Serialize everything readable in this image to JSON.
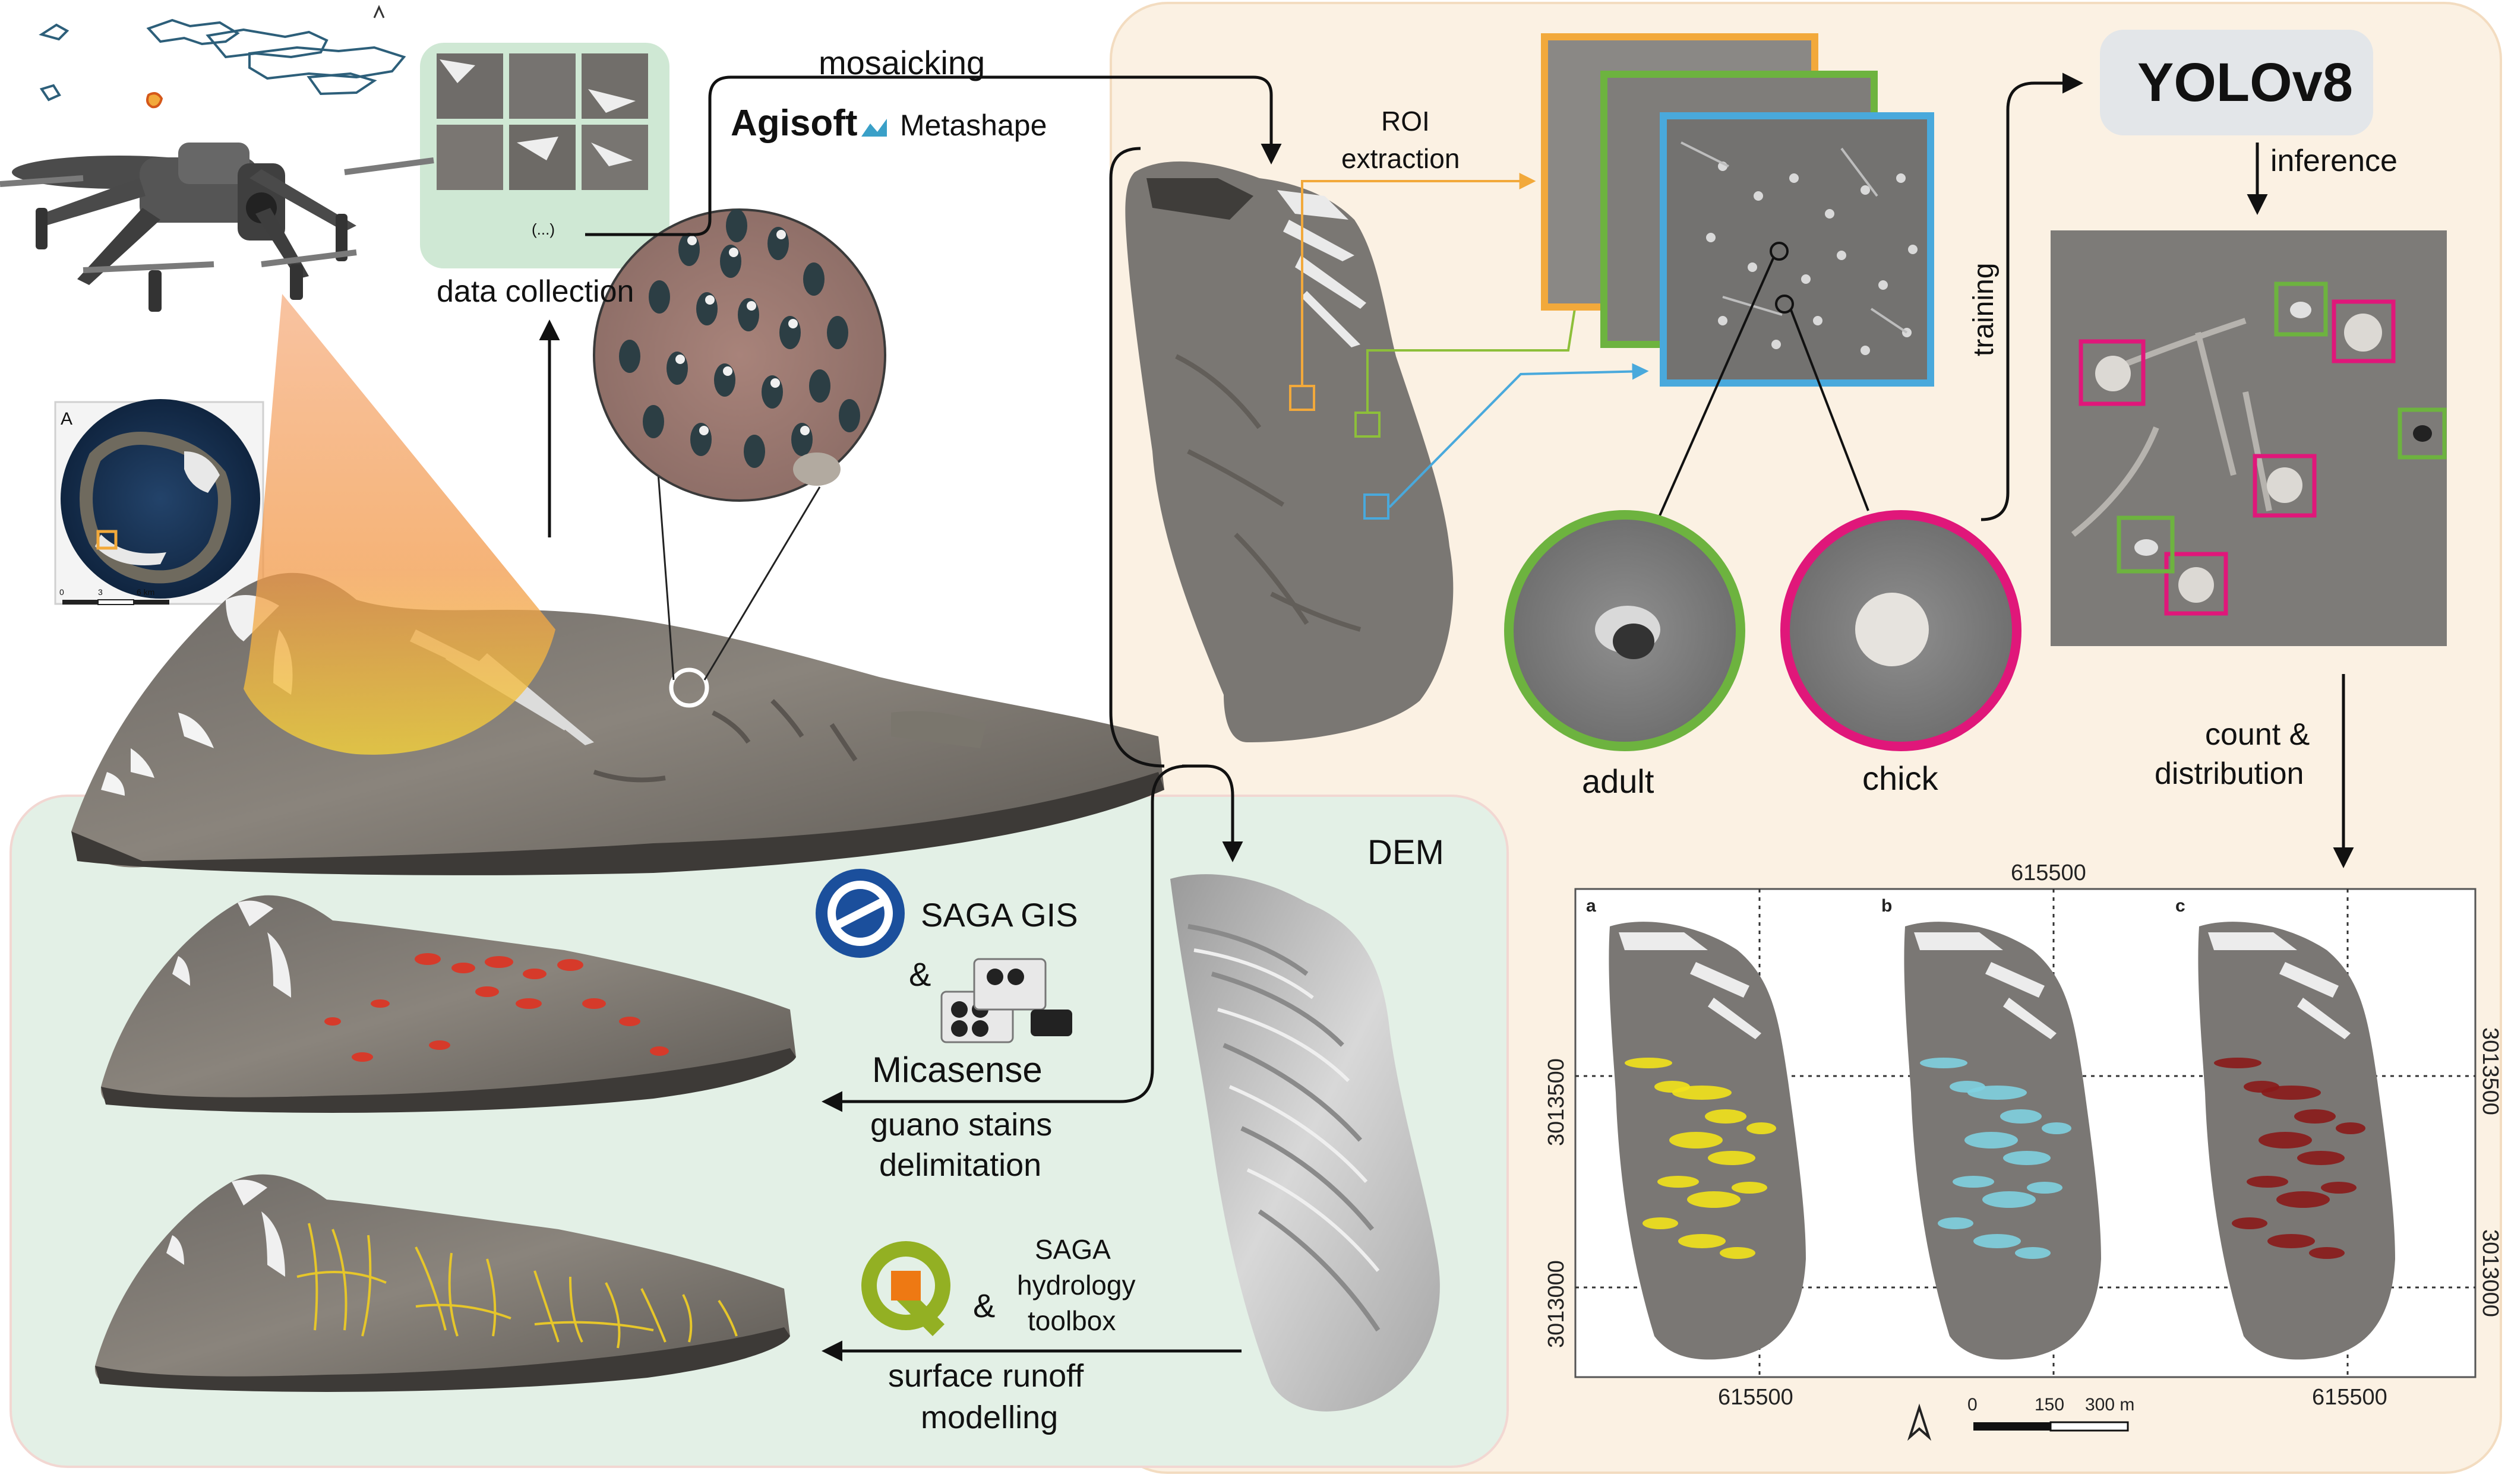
{
  "workflow": {
    "mosaicking": "mosaicking",
    "software_agisoft": "Agisoft",
    "software_metashape": "Metashape",
    "ellipsis": "(...)",
    "data_collection": "data collection",
    "roi_extraction_1": "ROI",
    "roi_extraction_2": "extraction",
    "model": "YOLOv8",
    "inference": "inference",
    "training": "training",
    "adult": "adult",
    "chick": "chick",
    "count_1": "count &",
    "count_2": "distribution",
    "dem": "DEM",
    "saga_gis": "SAGA GIS",
    "amp1": "&",
    "micasense": "Micasense",
    "guano_1": "guano stains",
    "guano_2": "delimitation",
    "saga_hydro_1": "SAGA",
    "saga_hydro_2": "hydrology",
    "saga_hydro_3": "toolbox",
    "amp2": "&",
    "runoff_1": "surface runoff",
    "runoff_2": "modelling"
  },
  "inset_map": {
    "north": "A",
    "scale_0": "0",
    "scale_3": "3",
    "scale_6": "6 km"
  },
  "distribution_maps": {
    "panels": [
      {
        "letter": "a",
        "color": "#f2e21b"
      },
      {
        "letter": "b",
        "color": "#7fd0e0"
      },
      {
        "letter": "c",
        "color": "#8a1a1a"
      }
    ],
    "top_easting": "615500",
    "bottom_easting_1": "615500",
    "bottom_easting_2": "615500",
    "left_northing_1": "3013500",
    "left_northing_2": "3013000",
    "right_northing_1": "3013500",
    "right_northing_2": "3013000",
    "scale_0": "0",
    "scale_150": "150",
    "scale_300": "300 m"
  },
  "colors": {
    "green_panel": "#e3f0e6",
    "orange_panel": "#fbf1e3",
    "roi_orange": "#f2a93b",
    "roi_green": "#8dbf3a",
    "roi_blue": "#49a9dc",
    "adult_ring": "#6db33f",
    "chick_ring": "#e0177a"
  }
}
